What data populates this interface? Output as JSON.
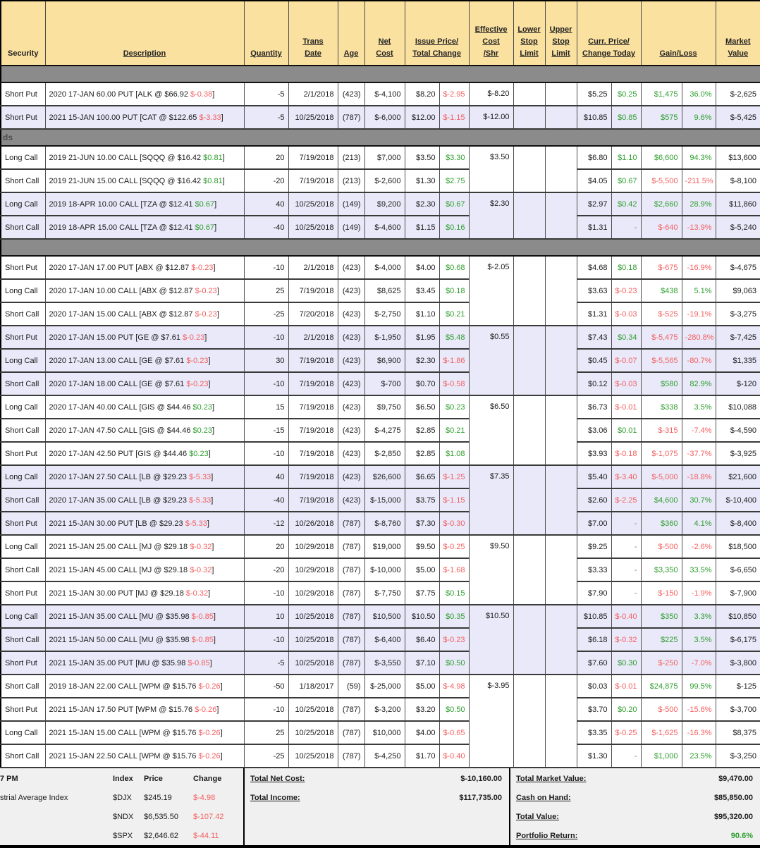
{
  "table": {
    "columns": [
      {
        "id": "security",
        "lines": [
          "Security"
        ],
        "span": 1,
        "underline": false
      },
      {
        "id": "description",
        "lines": [
          "Description"
        ],
        "span": 1
      },
      {
        "id": "quantity",
        "lines": [
          "Quantity"
        ],
        "span": 1
      },
      {
        "id": "trans-date",
        "lines": [
          "Trans",
          "Date"
        ],
        "span": 1
      },
      {
        "id": "age",
        "lines": [
          "Age"
        ],
        "span": 1
      },
      {
        "id": "net-cost",
        "lines": [
          "Net",
          "Cost"
        ],
        "span": 1
      },
      {
        "id": "issue-price-total-change",
        "lines": [
          "Issue Price/",
          "Total Change"
        ],
        "span": 2
      },
      {
        "id": "effective-cost-shr",
        "lines": [
          "Effective",
          "Cost",
          "/Shr"
        ],
        "span": 1
      },
      {
        "id": "lower-stop-limit",
        "lines": [
          "Lower",
          "Stop",
          "Limit"
        ],
        "span": 1
      },
      {
        "id": "upper-stop-limit",
        "lines": [
          "Upper",
          "Stop",
          "Limit"
        ],
        "span": 1
      },
      {
        "id": "curr-price-change-today",
        "lines": [
          "Curr. Price/",
          "Change Today"
        ],
        "span": 2
      },
      {
        "id": "gain-loss",
        "lines": [
          "Gain/Loss"
        ],
        "span": 2
      },
      {
        "id": "market-value",
        "lines": [
          "Market",
          "Value"
        ],
        "span": 1
      }
    ],
    "sections": [
      {
        "label": "",
        "groups": [
          {
            "shade": "wht",
            "eff": "$-8.20",
            "rows": [
              {
                "sec": "Short Put",
                "desc": "2020 17-JAN 60.00 PUT [ALK @ $66.92",
                "chg": "$-0.38",
                "qty": "-5",
                "date": "2/1/2018",
                "age": "(423)",
                "net": "$-4,100",
                "issue": "$8.20",
                "tchg": "$-2.95",
                "cprice": "$5.25",
                "ctoday": "$0.25",
                "gain": "$1,475",
                "gpct": "36.0%",
                "mval": "$-2,625"
              }
            ]
          },
          {
            "shade": "lav",
            "eff": "$-12.00",
            "rows": [
              {
                "sec": "Short Put",
                "desc": "2021 15-JAN 100.00 PUT [CAT @ $122.65",
                "chg": "$-3.33",
                "qty": "-5",
                "date": "10/25/2018",
                "age": "(787)",
                "net": "$-6,000",
                "issue": "$12.00",
                "tchg": "$-1.15",
                "cprice": "$10.85",
                "ctoday": "$0.85",
                "gain": "$575",
                "gpct": "9.6%",
                "mval": "$-5,425"
              }
            ]
          }
        ]
      },
      {
        "label": "ds",
        "groups": [
          {
            "shade": "wht",
            "eff": "$3.50",
            "rows": [
              {
                "sec": "Long Call",
                "desc": "2019 21-JUN 10.00 CALL [SQQQ @ $16.42",
                "chg": "$0.81",
                "qty": "20",
                "date": "7/19/2018",
                "age": "(213)",
                "net": "$7,000",
                "issue": "$3.50",
                "tchg": "$3.30",
                "cprice": "$6.80",
                "ctoday": "$1.10",
                "gain": "$6,600",
                "gpct": "94.3%",
                "mval": "$13,600"
              },
              {
                "sec": "Short Call",
                "desc": "2019 21-JUN 15.00 CALL [SQQQ @ $16.42",
                "chg": "$0.81",
                "qty": "-20",
                "date": "7/19/2018",
                "age": "(213)",
                "net": "$-2,600",
                "issue": "$1.30",
                "tchg": "$2.75",
                "cprice": "$4.05",
                "ctoday": "$0.67",
                "gain": "$-5,500",
                "gpct": "-211.5%",
                "mval": "$-8,100"
              }
            ]
          },
          {
            "shade": "lav",
            "eff": "$2.30",
            "rows": [
              {
                "sec": "Long Call",
                "desc": "2019 18-APR 10.00 CALL [TZA @ $12.41",
                "chg": "$0.67",
                "qty": "40",
                "date": "10/25/2018",
                "age": "(149)",
                "net": "$9,200",
                "issue": "$2.30",
                "tchg": "$0.67",
                "cprice": "$2.97",
                "ctoday": "$0.42",
                "gain": "$2,660",
                "gpct": "28.9%",
                "mval": "$11,860"
              },
              {
                "sec": "Short Call",
                "desc": "2019 18-APR 15.00 CALL [TZA @ $12.41",
                "chg": "$0.67",
                "qty": "-40",
                "date": "10/25/2018",
                "age": "(149)",
                "net": "$-4,600",
                "issue": "$1.15",
                "tchg": "$0.16",
                "cprice": "$1.31",
                "ctoday": "-",
                "gain": "$-640",
                "gpct": "-13.9%",
                "mval": "$-5,240"
              }
            ]
          }
        ]
      },
      {
        "label": "",
        "groups": [
          {
            "shade": "wht",
            "eff": "$-2.05",
            "rows": [
              {
                "sec": "Short Put",
                "desc": "2020 17-JAN 17.00 PUT [ABX @ $12.87",
                "chg": "$-0.23",
                "qty": "-10",
                "date": "2/1/2018",
                "age": "(423)",
                "net": "$-4,000",
                "issue": "$4.00",
                "tchg": "$0.68",
                "cprice": "$4.68",
                "ctoday": "$0.18",
                "gain": "$-675",
                "gpct": "-16.9%",
                "mval": "$-4,675"
              },
              {
                "sec": "Long Call",
                "desc": "2020 17-JAN 10.00 CALL [ABX @ $12.87",
                "chg": "$-0.23",
                "qty": "25",
                "date": "7/19/2018",
                "age": "(423)",
                "net": "$8,625",
                "issue": "$3.45",
                "tchg": "$0.18",
                "cprice": "$3.63",
                "ctoday": "$-0.23",
                "gain": "$438",
                "gpct": "5.1%",
                "mval": "$9,063"
              },
              {
                "sec": "Short Call",
                "desc": "2020 17-JAN 15.00 CALL [ABX @ $12.87",
                "chg": "$-0.23",
                "qty": "-25",
                "date": "7/20/2018",
                "age": "(423)",
                "net": "$-2,750",
                "issue": "$1.10",
                "tchg": "$0.21",
                "cprice": "$1.31",
                "ctoday": "$-0.03",
                "gain": "$-525",
                "gpct": "-19.1%",
                "mval": "$-3,275"
              }
            ]
          },
          {
            "shade": "lav",
            "eff": "$0.55",
            "rows": [
              {
                "sec": "Short Put",
                "desc": "2020 17-JAN 15.00 PUT [GE @ $7.61",
                "chg": "$-0.23",
                "qty": "-10",
                "date": "2/1/2018",
                "age": "(423)",
                "net": "$-1,950",
                "issue": "$1.95",
                "tchg": "$5.48",
                "cprice": "$7.43",
                "ctoday": "$0.34",
                "gain": "$-5,475",
                "gpct": "-280.8%",
                "mval": "$-7,425"
              },
              {
                "sec": "Long Call",
                "desc": "2020 17-JAN 13.00 CALL [GE @ $7.61",
                "chg": "$-0.23",
                "qty": "30",
                "date": "7/19/2018",
                "age": "(423)",
                "net": "$6,900",
                "issue": "$2.30",
                "tchg": "$-1.86",
                "cprice": "$0.45",
                "ctoday": "$-0.07",
                "gain": "$-5,565",
                "gpct": "-80.7%",
                "mval": "$1,335"
              },
              {
                "sec": "Short Call",
                "desc": "2020 17-JAN 18.00 CALL [GE @ $7.61",
                "chg": "$-0.23",
                "qty": "-10",
                "date": "7/19/2018",
                "age": "(423)",
                "net": "$-700",
                "issue": "$0.70",
                "tchg": "$-0.58",
                "cprice": "$0.12",
                "ctoday": "$-0.03",
                "gain": "$580",
                "gpct": "82.9%",
                "mval": "$-120"
              }
            ]
          },
          {
            "shade": "wht",
            "eff": "$6.50",
            "rows": [
              {
                "sec": "Long Call",
                "desc": "2020 17-JAN 40.00 CALL [GIS @ $44.46",
                "chg": "$0.23",
                "qty": "15",
                "date": "7/19/2018",
                "age": "(423)",
                "net": "$9,750",
                "issue": "$6.50",
                "tchg": "$0.23",
                "cprice": "$6.73",
                "ctoday": "$-0.01",
                "gain": "$338",
                "gpct": "3.5%",
                "mval": "$10,088"
              },
              {
                "sec": "Short Call",
                "desc": "2020 17-JAN 47.50 CALL [GIS @ $44.46",
                "chg": "$0.23",
                "qty": "-15",
                "date": "7/19/2018",
                "age": "(423)",
                "net": "$-4,275",
                "issue": "$2.85",
                "tchg": "$0.21",
                "cprice": "$3.06",
                "ctoday": "$0.01",
                "gain": "$-315",
                "gpct": "-7.4%",
                "mval": "$-4,590"
              },
              {
                "sec": "Short Put",
                "desc": "2020 17-JAN 42.50 PUT [GIS @ $44.46",
                "chg": "$0.23",
                "qty": "-10",
                "date": "7/19/2018",
                "age": "(423)",
                "net": "$-2,850",
                "issue": "$2.85",
                "tchg": "$1.08",
                "cprice": "$3.93",
                "ctoday": "$-0.18",
                "gain": "$-1,075",
                "gpct": "-37.7%",
                "mval": "$-3,925"
              }
            ]
          },
          {
            "shade": "lav",
            "eff": "$7.35",
            "rows": [
              {
                "sec": "Long Call",
                "desc": "2020 17-JAN 27.50 CALL [LB @ $29.23",
                "chg": "$-5.33",
                "qty": "40",
                "date": "7/19/2018",
                "age": "(423)",
                "net": "$26,600",
                "issue": "$6.65",
                "tchg": "$-1.25",
                "cprice": "$5.40",
                "ctoday": "$-3.40",
                "gain": "$-5,000",
                "gpct": "-18.8%",
                "mval": "$21,600"
              },
              {
                "sec": "Short Call",
                "desc": "2020 17-JAN 35.00 CALL [LB @ $29.23",
                "chg": "$-5.33",
                "qty": "-40",
                "date": "7/19/2018",
                "age": "(423)",
                "net": "$-15,000",
                "issue": "$3.75",
                "tchg": "$-1.15",
                "cprice": "$2.60",
                "ctoday": "$-2.25",
                "gain": "$4,600",
                "gpct": "30.7%",
                "mval": "$-10,400"
              },
              {
                "sec": "Short Put",
                "desc": "2021 15-JAN 30.00 PUT [LB @ $29.23",
                "chg": "$-5.33",
                "qty": "-12",
                "date": "10/26/2018",
                "age": "(787)",
                "net": "$-8,760",
                "issue": "$7.30",
                "tchg": "$-0.30",
                "cprice": "$7.00",
                "ctoday": "-",
                "gain": "$360",
                "gpct": "4.1%",
                "mval": "$-8,400"
              }
            ]
          },
          {
            "shade": "wht",
            "eff": "$9.50",
            "rows": [
              {
                "sec": "Long Call",
                "desc": "2021 15-JAN 25.00 CALL [MJ @ $29.18",
                "chg": "$-0.32",
                "qty": "20",
                "date": "10/29/2018",
                "age": "(787)",
                "net": "$19,000",
                "issue": "$9.50",
                "tchg": "$-0.25",
                "cprice": "$9.25",
                "ctoday": "-",
                "gain": "$-500",
                "gpct": "-2.6%",
                "mval": "$18,500"
              },
              {
                "sec": "Short Call",
                "desc": "2021 15-JAN 45.00 CALL [MJ @ $29.18",
                "chg": "$-0.32",
                "qty": "-20",
                "date": "10/29/2018",
                "age": "(787)",
                "net": "$-10,000",
                "issue": "$5.00",
                "tchg": "$-1.68",
                "cprice": "$3.33",
                "ctoday": "-",
                "gain": "$3,350",
                "gpct": "33.5%",
                "mval": "$-6,650"
              },
              {
                "sec": "Short Put",
                "desc": "2021 15-JAN 30.00 PUT [MJ @ $29.18",
                "chg": "$-0.32",
                "qty": "-10",
                "date": "10/29/2018",
                "age": "(787)",
                "net": "$-7,750",
                "issue": "$7.75",
                "tchg": "$0.15",
                "cprice": "$7.90",
                "ctoday": "-",
                "gain": "$-150",
                "gpct": "-1.9%",
                "mval": "$-7,900"
              }
            ]
          },
          {
            "shade": "lav",
            "eff": "$10.50",
            "rows": [
              {
                "sec": "Long Call",
                "desc": "2021 15-JAN 35.00 CALL [MU @ $35.98",
                "chg": "$-0.85",
                "qty": "10",
                "date": "10/25/2018",
                "age": "(787)",
                "net": "$10,500",
                "issue": "$10.50",
                "tchg": "$0.35",
                "cprice": "$10.85",
                "ctoday": "$-0.40",
                "gain": "$350",
                "gpct": "3.3%",
                "mval": "$10,850"
              },
              {
                "sec": "Short Call",
                "desc": "2021 15-JAN 50.00 CALL [MU @ $35.98",
                "chg": "$-0.85",
                "qty": "-10",
                "date": "10/25/2018",
                "age": "(787)",
                "net": "$-6,400",
                "issue": "$6.40",
                "tchg": "$-0.23",
                "cprice": "$6.18",
                "ctoday": "$-0.32",
                "gain": "$225",
                "gpct": "3.5%",
                "mval": "$-6,175"
              },
              {
                "sec": "Short Put",
                "desc": "2021 15-JAN 35.00 PUT [MU @ $35.98",
                "chg": "$-0.85",
                "qty": "-5",
                "date": "10/25/2018",
                "age": "(787)",
                "net": "$-3,550",
                "issue": "$7.10",
                "tchg": "$0.50",
                "cprice": "$7.60",
                "ctoday": "$0.30",
                "gain": "$-250",
                "gpct": "-7.0%",
                "mval": "$-3,800"
              }
            ]
          },
          {
            "shade": "wht",
            "eff": "$-3.95",
            "rows": [
              {
                "sec": "Short Call",
                "desc": "2019 18-JAN 22.00 CALL [WPM @ $15.76",
                "chg": "$-0.26",
                "qty": "-50",
                "date": "1/18/2017",
                "age": "(59)",
                "net": "$-25,000",
                "issue": "$5.00",
                "tchg": "$-4.98",
                "cprice": "$0.03",
                "ctoday": "$-0.01",
                "gain": "$24,875",
                "gpct": "99.5%",
                "mval": "$-125"
              },
              {
                "sec": "Short Put",
                "desc": "2021 15-JAN 17.50 PUT [WPM @ $15.76",
                "chg": "$-0.26",
                "qty": "-10",
                "date": "10/25/2018",
                "age": "(787)",
                "net": "$-3,200",
                "issue": "$3.20",
                "tchg": "$0.50",
                "cprice": "$3.70",
                "ctoday": "$0.20",
                "gain": "$-500",
                "gpct": "-15.6%",
                "mval": "$-3,700"
              },
              {
                "sec": "Long Call",
                "desc": "2021 15-JAN 15.00 CALL [WPM @ $15.76",
                "chg": "$-0.26",
                "qty": "25",
                "date": "10/25/2018",
                "age": "(787)",
                "net": "$10,000",
                "issue": "$4.00",
                "tchg": "$-0.65",
                "cprice": "$3.35",
                "ctoday": "$-0.25",
                "gain": "$-1,625",
                "gpct": "-16.3%",
                "mval": "$8,375"
              },
              {
                "sec": "Short Call",
                "desc": "2021 15-JAN 22.50 CALL [WPM @ $15.76",
                "chg": "$-0.26",
                "qty": "-25",
                "date": "10/25/2018",
                "age": "(787)",
                "net": "$-4,250",
                "issue": "$1.70",
                "tchg": "$-0.40",
                "cprice": "$1.30",
                "ctoday": "-",
                "gain": "$1,000",
                "gpct": "23.5%",
                "mval": "$-3,250"
              }
            ]
          }
        ]
      }
    ]
  },
  "footer": {
    "time_partial": "7 PM",
    "index_name_partial": "strial Average Index",
    "index_table": {
      "headers": [
        "Index",
        "Price",
        "Change"
      ],
      "rows": [
        {
          "symbol": "$DJX",
          "price": "$245.19",
          "change": "$-4.98"
        },
        {
          "symbol": "$NDX",
          "price": "$6,535.50",
          "change": "$-107.42"
        },
        {
          "symbol": "$SPX",
          "price": "$2,646.62",
          "change": "$-44.11"
        }
      ]
    },
    "totals_left": [
      {
        "label": "Total Net Cost: ",
        "value": "$-10,160.00"
      },
      {
        "label": "Total Income: ",
        "value": "$117,735.00"
      }
    ],
    "totals_right": [
      {
        "label": "Total Market Value: ",
        "value": "$9,470.00"
      },
      {
        "label": "Cash on Hand: ",
        "value": "$85,850.00"
      },
      {
        "label": "Total Value: ",
        "value": "$95,320.00"
      },
      {
        "label": "Portfolio Return: ",
        "value": "90.6%"
      }
    ]
  }
}
